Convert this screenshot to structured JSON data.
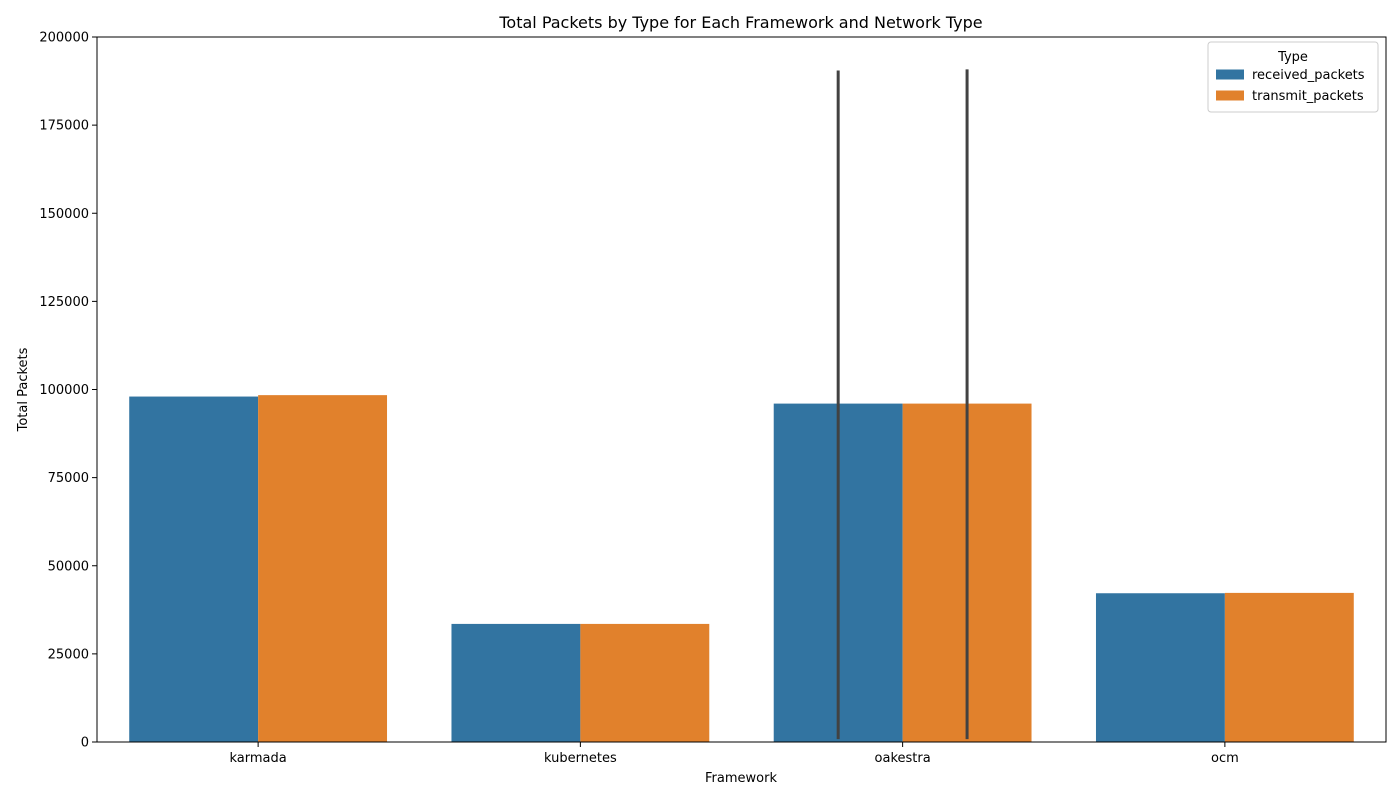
{
  "chart_data": {
    "type": "bar",
    "title": "Total Packets by Type for Each Framework and Network Type",
    "xlabel": "Framework",
    "ylabel": "Total Packets",
    "ylim": [
      0,
      200000
    ],
    "yticks": [
      0,
      25000,
      50000,
      75000,
      100000,
      125000,
      150000,
      175000,
      200000
    ],
    "categories": [
      "karmada",
      "kubernetes",
      "oakestra",
      "ocm"
    ],
    "series": [
      {
        "name": "received_packets",
        "color": "#3274a1",
        "values": [
          98000,
          33500,
          96000,
          42200
        ],
        "error_bars": [
          null,
          null,
          [
            800,
            190500
          ],
          null
        ]
      },
      {
        "name": "transmit_packets",
        "color": "#e1812c",
        "values": [
          98400,
          33500,
          96000,
          42300
        ],
        "error_bars": [
          null,
          null,
          [
            800,
            190800
          ],
          null
        ]
      }
    ],
    "grid": false,
    "legend": {
      "title": "Type",
      "placement": "top-right"
    }
  }
}
